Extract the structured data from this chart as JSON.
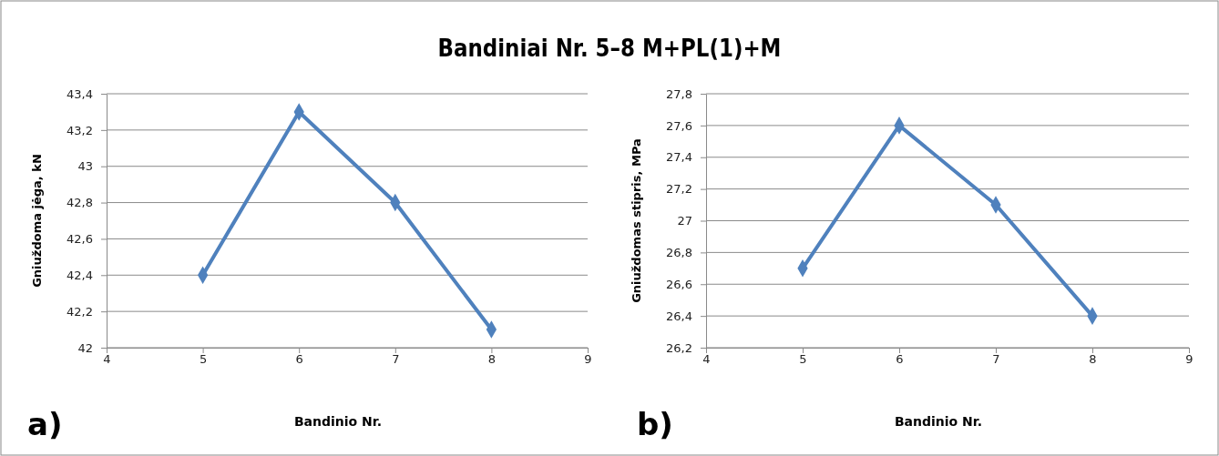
{
  "chart_data": [
    {
      "type": "line",
      "title": "Bandiniai Nr. 5–8 M+PL(1)+M",
      "xlabel": "Bandinio Nr.",
      "ylabel": "Gniuždoma jėga, kN",
      "annotations": [
        "a)"
      ],
      "x": [
        5,
        6,
        7,
        8
      ],
      "series": [
        {
          "color": "#4f81bd",
          "values": [
            42.4,
            43.3,
            42.8,
            42.1
          ]
        }
      ],
      "xlim": [
        4,
        9
      ],
      "xticks": [
        4,
        5,
        6,
        7,
        8,
        9
      ],
      "ylim": [
        42,
        43.4
      ],
      "yticks": [
        42,
        {
          "value": 42.2,
          "label": "42,2"
        },
        {
          "value": 42.4,
          "label": "42,4"
        },
        {
          "value": 42.6,
          "label": "42,6"
        },
        {
          "value": 42.8,
          "label": "42,8"
        },
        43,
        {
          "value": 43.2,
          "label": "43,2"
        },
        {
          "value": 43.4,
          "label": "43,4"
        }
      ],
      "grid": "y",
      "marker": "diamond",
      "line_style": "solid"
    },
    {
      "type": "line",
      "xlabel": "Bandinio Nr.",
      "ylabel": "Gniuždomas stipris, MPa",
      "annotations": [
        "b)"
      ],
      "x": [
        5,
        6,
        7,
        8
      ],
      "series": [
        {
          "color": "#4f81bd",
          "values": [
            26.7,
            27.6,
            27.1,
            26.4
          ]
        }
      ],
      "xlim": [
        4,
        9
      ],
      "xticks": [
        4,
        5,
        6,
        7,
        8,
        9
      ],
      "ylim": [
        26.2,
        27.8
      ],
      "yticks": [
        {
          "value": 26.2,
          "label": "26,2"
        },
        {
          "value": 26.4,
          "label": "26,4"
        },
        {
          "value": 26.6,
          "label": "26,6"
        },
        {
          "value": 26.8,
          "label": "26,8"
        },
        27,
        {
          "value": 27.2,
          "label": "27,2"
        },
        {
          "value": 27.4,
          "label": "27,4"
        },
        {
          "value": 27.6,
          "label": "27,6"
        },
        {
          "value": 27.8,
          "label": "27,8"
        }
      ],
      "grid": "y",
      "marker": "diamond",
      "line_style": "solid"
    }
  ]
}
